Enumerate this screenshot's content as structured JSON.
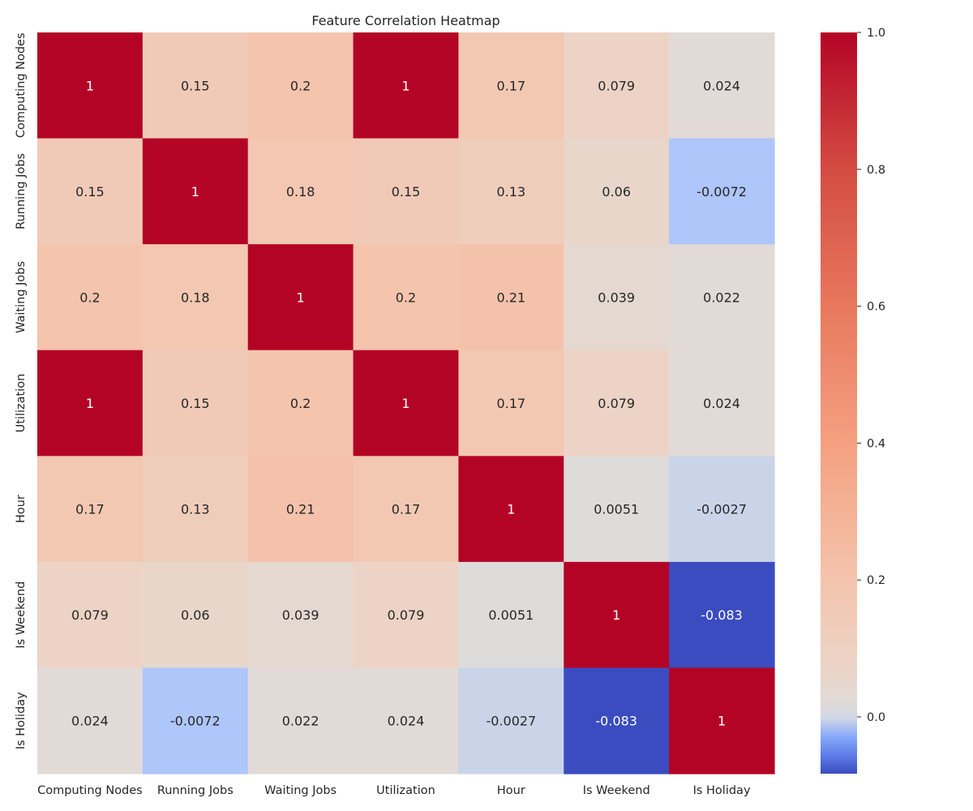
{
  "chart_data": {
    "type": "heatmap",
    "title": "Feature Correlation Heatmap",
    "xlabel": "",
    "ylabel": "",
    "row_labels": [
      "Computing Nodes",
      "Running Jobs",
      "Waiting Jobs",
      "Utilization",
      "Hour",
      "Is Weekend",
      "Is Holiday"
    ],
    "col_labels": [
      "Computing Nodes",
      "Running Jobs",
      "Waiting Jobs",
      "Utilization",
      "Hour",
      "Is Weekend",
      "Is Holiday"
    ],
    "values": [
      [
        1,
        0.15,
        0.2,
        1,
        0.17,
        0.079,
        0.024
      ],
      [
        0.15,
        1,
        0.18,
        0.15,
        0.13,
        0.06,
        -0.0072
      ],
      [
        0.2,
        0.18,
        1,
        0.2,
        0.21,
        0.039,
        0.022
      ],
      [
        1,
        0.15,
        0.2,
        1,
        0.17,
        0.079,
        0.024
      ],
      [
        0.17,
        0.13,
        0.21,
        0.17,
        1,
        0.0051,
        -0.0027
      ],
      [
        0.079,
        0.06,
        0.039,
        0.079,
        0.0051,
        1,
        -0.083
      ],
      [
        0.024,
        -0.0072,
        0.022,
        0.024,
        -0.0027,
        -0.083,
        1
      ]
    ],
    "cell_labels": [
      [
        "1",
        "0.15",
        "0.2",
        "1",
        "0.17",
        "0.079",
        "0.024"
      ],
      [
        "0.15",
        "1",
        "0.18",
        "0.15",
        "0.13",
        "0.06",
        "-0.0072"
      ],
      [
        "0.2",
        "0.18",
        "1",
        "0.2",
        "0.21",
        "0.039",
        "0.022"
      ],
      [
        "1",
        "0.15",
        "0.2",
        "1",
        "0.17",
        "0.079",
        "0.024"
      ],
      [
        "0.17",
        "0.13",
        "0.21",
        "0.17",
        "1",
        "0.0051",
        "-0.0027"
      ],
      [
        "0.079",
        "0.06",
        "0.039",
        "0.079",
        "0.0051",
        "1",
        "-0.083"
      ],
      [
        "0.024",
        "-0.0072",
        "0.022",
        "0.024",
        "-0.0027",
        "-0.083",
        "1"
      ]
    ],
    "colormap": "coolwarm",
    "center": 0,
    "colorbar": {
      "range": [
        -0.083,
        1.0
      ],
      "ticks": [
        0.0,
        0.2,
        0.4,
        0.6,
        0.8,
        1.0
      ],
      "tick_labels": [
        "0.0",
        "0.2",
        "0.4",
        "0.6",
        "0.8",
        "1.0"
      ],
      "placement": "right"
    },
    "grid": false
  }
}
